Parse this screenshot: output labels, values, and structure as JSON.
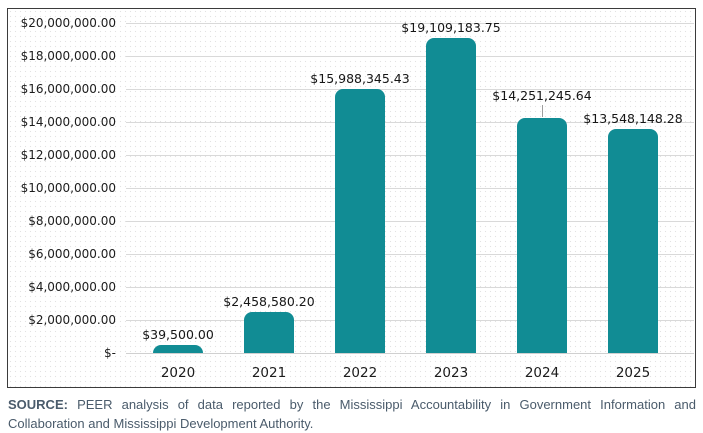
{
  "chart_data": {
    "type": "bar",
    "title": "",
    "xlabel": "",
    "ylabel": "",
    "categories": [
      "2020",
      "2021",
      "2022",
      "2023",
      "2024",
      "2025"
    ],
    "values": [
      39500.0,
      2458580.2,
      15988345.43,
      19109183.75,
      14251245.64,
      13548148.28
    ],
    "data_labels": [
      "$39,500.00",
      "$2,458,580.20",
      "$15,988,345.43",
      "$19,109,183.75",
      "$14,251,245.64",
      "$13,548,148.28"
    ],
    "label_lift": [
      0,
      0,
      0,
      0,
      12,
      0
    ],
    "leader_lines": [
      false,
      false,
      false,
      false,
      true,
      false
    ],
    "ylim": [
      0,
      20000000
    ],
    "ytick_interval": 2000000,
    "ytick_labels": [
      "$-",
      "$2,000,000.00",
      "$4,000,000.00",
      "$6,000,000.00",
      "$8,000,000.00",
      "$10,000,000.00",
      "$12,000,000.00",
      "$14,000,000.00",
      "$16,000,000.00",
      "$18,000,000.00",
      "$20,000,000.00"
    ],
    "grid": true,
    "legend": false,
    "bar_color": "#118c94"
  },
  "colors": {
    "bar": "#118c94",
    "gridline": "#d9d9d9",
    "box_border": "#3b3b3b",
    "axis_text": "#1c1c1c",
    "footer_text": "#4a5b6b",
    "leader_line": "#9e9e9e"
  },
  "footer": {
    "source_label": "SOURCE:",
    "line1_rest": "PEER analysis of data reported by the Mississippi Accountability in Government Information and",
    "line2": "Collaboration and Mississippi Development Authority.",
    "full_text": "SOURCE: PEER analysis of data reported by the Mississippi Accountability in Government Information and Collaboration and Mississippi Development Authority."
  }
}
